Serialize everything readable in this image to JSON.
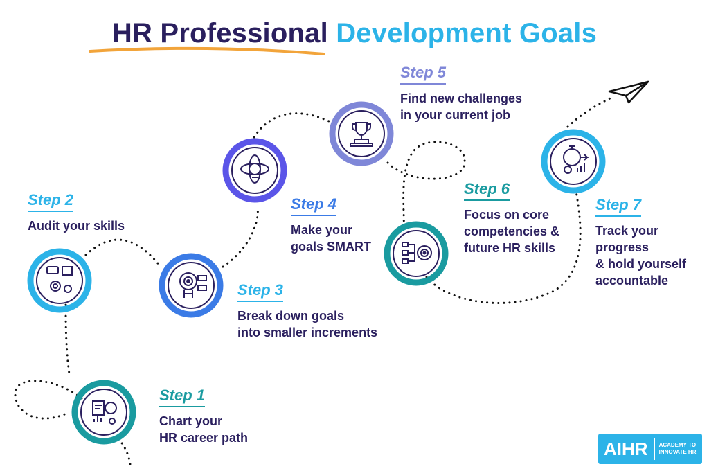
{
  "title": {
    "part1": "HR Professional",
    "part2": "Development Goals"
  },
  "colors": {
    "navy": "#2a1f5e",
    "cyan": "#2cb3e8",
    "teal": "#1a9ba0",
    "blue": "#3b7be6",
    "violet": "#5b55e8",
    "lavender": "#7f87d8"
  },
  "steps": [
    {
      "label": "Step 1",
      "text": [
        "Chart your",
        "HR career path"
      ],
      "icon": "career-path-icon",
      "color": "#1a9ba0"
    },
    {
      "label": "Step 2",
      "text": [
        "Audit your skills"
      ],
      "icon": "skills-audit-icon",
      "color": "#2cb3e8"
    },
    {
      "label": "Step 3",
      "text": [
        "Break down goals",
        "into smaller increments"
      ],
      "icon": "target-ladder-icon",
      "color": "#2cb3e8"
    },
    {
      "label": "Step 4",
      "text": [
        "Make your",
        "goals SMART"
      ],
      "icon": "lightbulb-icon",
      "color": "#3b7be6"
    },
    {
      "label": "Step 5",
      "text": [
        "Find new challenges",
        "in your current job"
      ],
      "icon": "trophy-icon",
      "color": "#7f87d8"
    },
    {
      "label": "Step 6",
      "text": [
        "Focus on core",
        "competencies &",
        "future HR skills"
      ],
      "icon": "target-flowchart-icon",
      "color": "#1a9ba0"
    },
    {
      "label": "Step 7",
      "text": [
        "Track your",
        "progress",
        "& hold yourself",
        "accountable"
      ],
      "icon": "stopwatch-progress-icon",
      "color": "#2cb3e8"
    }
  ],
  "logo": {
    "main": "AIHR",
    "sub_line1": "ACADEMY TO",
    "sub_line2": "INNOVATE HR"
  }
}
